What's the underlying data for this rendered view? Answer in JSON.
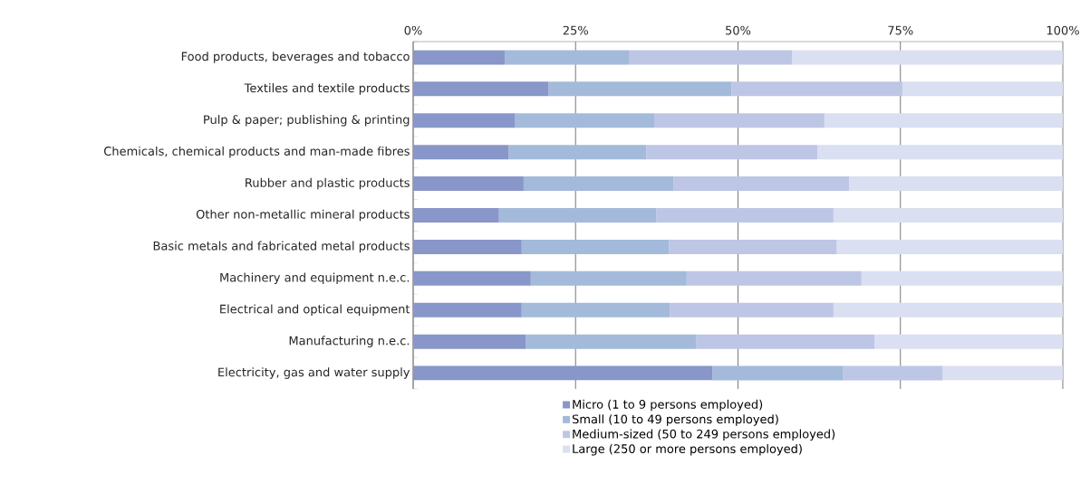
{
  "chart_data": {
    "type": "bar",
    "orientation": "horizontal",
    "stacked": true,
    "categories": [
      "Food products, beverages and tobacco",
      "Textiles and textile products",
      "Pulp & paper; publishing & printing",
      "Chemicals, chemical products and man-made fibres",
      "Rubber and plastic products",
      "Other non-metallic mineral products",
      "Basic metals and fabricated metal products",
      "Machinery and equipment n.e.c.",
      "Electrical and optical equipment",
      "Manufacturing n.e.c.",
      "Electricity, gas and water supply"
    ],
    "series": [
      {
        "name": "Micro (1 to 9 persons employed)",
        "color": "#8896c9",
        "values": [
          14.1,
          20.8,
          15.7,
          14.7,
          17.0,
          13.2,
          16.7,
          18.1,
          16.7,
          17.3,
          46.1
        ]
      },
      {
        "name": "Small (10 to 49 persons employed)",
        "color": "#a3bada",
        "values": [
          19.2,
          28.2,
          21.4,
          21.2,
          23.1,
          24.2,
          22.7,
          24.0,
          22.8,
          26.3,
          20.1
        ]
      },
      {
        "name": "Medium-sized (50 to 249 persons employed)",
        "color": "#bec6e6",
        "values": [
          25.0,
          26.3,
          26.2,
          26.3,
          27.0,
          27.3,
          25.8,
          26.9,
          25.2,
          27.4,
          15.3
        ]
      },
      {
        "name": "Large (250 or more persons employed)",
        "color": "#dadff1",
        "values": [
          41.7,
          24.7,
          36.7,
          37.8,
          32.9,
          35.3,
          34.8,
          31.0,
          35.3,
          29.0,
          18.5
        ]
      }
    ],
    "xlim": [
      0,
      100
    ],
    "xticks": [
      {
        "value": 0,
        "label": "0%"
      },
      {
        "value": 25,
        "label": "25%"
      },
      {
        "value": 50,
        "label": "50%"
      },
      {
        "value": 75,
        "label": "75%"
      },
      {
        "value": 100,
        "label": "100%"
      }
    ],
    "grid": "x",
    "legend": "bottom"
  }
}
